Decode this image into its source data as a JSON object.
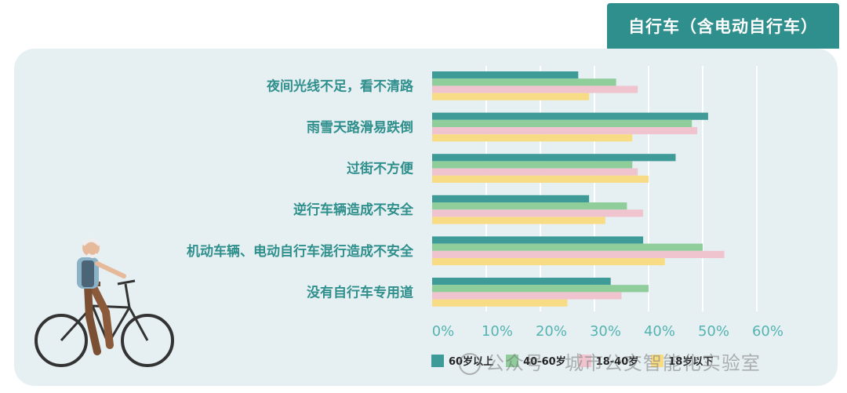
{
  "title": "自行车（含电动自行车）",
  "watermark": "公众号 · 城市公交智能化实验室",
  "colors": {
    "panel": "#e6f0f2",
    "title_bg": "#2f8f8c",
    "label": "#2f8f8c",
    "tick": "#55b3b2"
  },
  "chart_data": {
    "type": "bar",
    "orientation": "horizontal",
    "categories": [
      "夜间光线不足，看不清路",
      "雨雪天路滑易跌倒",
      "过街不方便",
      "逆行车辆造成不安全",
      "机动车辆、电动自行车混行造成不安全",
      "没有自行车专用道"
    ],
    "series": [
      {
        "name": "60岁以上",
        "color": "#3e9b98",
        "values": [
          27,
          51,
          45,
          29,
          39,
          33
        ]
      },
      {
        "name": "40-60岁",
        "color": "#8fcd9a",
        "values": [
          34,
          48,
          37,
          36,
          50,
          40
        ]
      },
      {
        "name": "18-40岁",
        "color": "#efc4cf",
        "values": [
          38,
          49,
          38,
          39,
          54,
          35
        ]
      },
      {
        "name": "18岁以下",
        "color": "#f8dc85",
        "values": [
          29,
          37,
          40,
          32,
          43,
          25
        ]
      }
    ],
    "xlim": [
      0,
      60
    ],
    "ticks": [
      "0%",
      "10%",
      "20%",
      "30%",
      "40%",
      "50%",
      "60%"
    ],
    "grid": true,
    "legend": "bottom"
  }
}
